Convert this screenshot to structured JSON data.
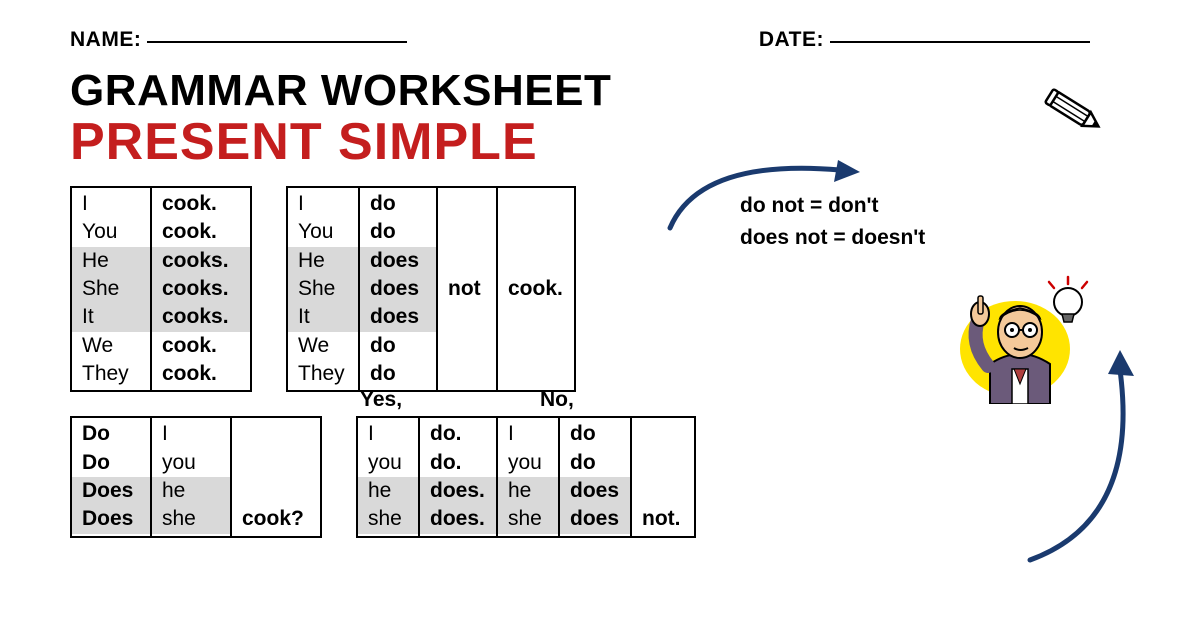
{
  "header": {
    "name_label": "NAME:",
    "date_label": "DATE:"
  },
  "titles": {
    "line1": "GRAMMAR WORKSHEET",
    "line2": "PRESENT SIMPLE",
    "line2_color": "#c41e1e"
  },
  "colors": {
    "shade": "#d9d9d9",
    "arrow": "#1a3a6e",
    "title_red": "#c41e1e"
  },
  "tableA": {
    "col1": [
      "I",
      "You",
      "He",
      "She",
      "It",
      "We",
      "They"
    ],
    "col2": [
      "cook.",
      "cook.",
      "cooks.",
      "cooks.",
      "cooks.",
      "cook.",
      "cook."
    ],
    "shaded_rows": [
      2,
      3,
      4
    ]
  },
  "tableB": {
    "col1": [
      "I",
      "You",
      "He",
      "She",
      "It",
      "We",
      "They"
    ],
    "col2": [
      "do",
      "do",
      "does",
      "does",
      "does",
      "do",
      "do"
    ],
    "col3": "not",
    "col4": "cook.",
    "shaded_rows": [
      2,
      3,
      4
    ]
  },
  "notes": {
    "line1": "do not = don't",
    "line2": "does not = doesn't"
  },
  "tableC": {
    "col1": [
      "Do",
      "Do",
      "Does",
      "Does"
    ],
    "col2": [
      "I",
      "you",
      "he",
      "she"
    ],
    "col3": "cook?",
    "shaded_rows": [
      2,
      3
    ]
  },
  "tableD": {
    "yes_label": "Yes,",
    "no_label": "No,",
    "colA": [
      "I",
      "you",
      "he",
      "she"
    ],
    "colB": [
      "do.",
      "do.",
      "does.",
      "does."
    ],
    "colC": [
      "I",
      "you",
      "he",
      "she"
    ],
    "colD": [
      "do",
      "do",
      "does",
      "does"
    ],
    "colE": "not.",
    "shaded_rows": [
      2,
      3
    ]
  }
}
